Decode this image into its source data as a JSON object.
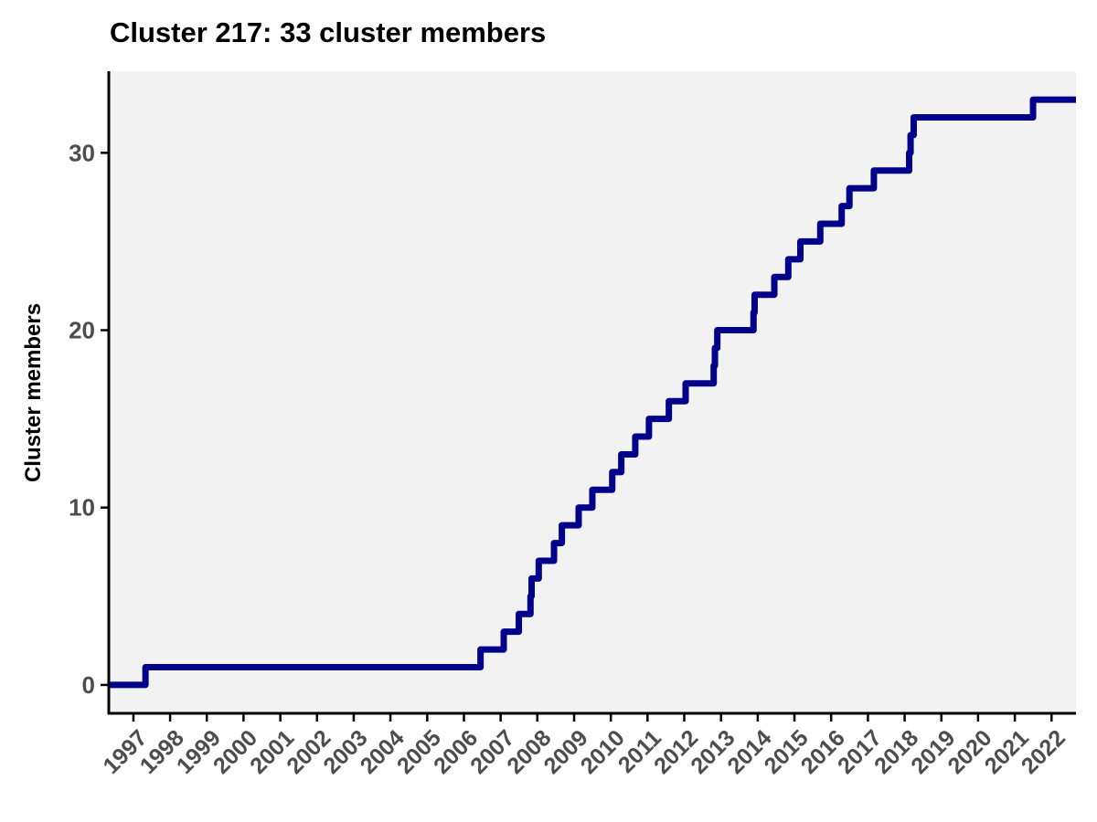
{
  "chart_data": {
    "type": "line",
    "step": true,
    "title": "Cluster 217: 33 cluster members",
    "xlabel": "",
    "ylabel": "Cluster members",
    "xlim": [
      "1996-05-01",
      "2022-09-01"
    ],
    "ylim": [
      -1.6,
      34.6
    ],
    "y_ticks": [
      0,
      10,
      20,
      30
    ],
    "x_ticks": [
      "1997",
      "1998",
      "1999",
      "2000",
      "2001",
      "2002",
      "2003",
      "2004",
      "2005",
      "2006",
      "2007",
      "2008",
      "2009",
      "2010",
      "2011",
      "2012",
      "2013",
      "2014",
      "2015",
      "2016",
      "2017",
      "2018",
      "2019",
      "2020",
      "2021",
      "2022"
    ],
    "grid": false,
    "panel_background": "#f2f2f2",
    "colors": {
      "line": "#00008b",
      "axis": "#000000",
      "tick_text": "#4d4d4d"
    },
    "series": [
      {
        "dates": [
          "1996-05-01",
          "1997-05-01",
          "2006-06-15",
          "2007-02-01",
          "2007-07-01",
          "2007-10-25",
          "2007-11-05",
          "2008-01-15",
          "2008-06-15",
          "2008-09-01",
          "2009-02-15",
          "2009-07-01",
          "2010-01-15",
          "2010-04-15",
          "2010-09-01",
          "2011-01-15",
          "2011-08-01",
          "2012-01-15",
          "2012-10-20",
          "2012-11-01",
          "2012-11-25",
          "2013-11-20",
          "2013-12-01",
          "2014-06-15",
          "2014-11-01",
          "2015-03-01",
          "2015-09-15",
          "2016-04-15",
          "2016-07-01",
          "2017-03-01",
          "2017-05-15",
          "2018-02-15",
          "2018-03-01",
          "2018-04-01",
          "2021-07-01",
          "2022-09-01"
        ],
        "values": [
          0,
          1,
          2,
          3,
          4,
          5,
          6,
          7,
          8,
          9,
          10,
          11,
          12,
          13,
          14,
          15,
          16,
          17,
          18,
          19,
          20,
          21,
          22,
          23,
          24,
          25,
          26,
          27,
          28,
          29,
          29,
          30,
          31,
          32,
          33,
          33
        ]
      }
    ]
  }
}
